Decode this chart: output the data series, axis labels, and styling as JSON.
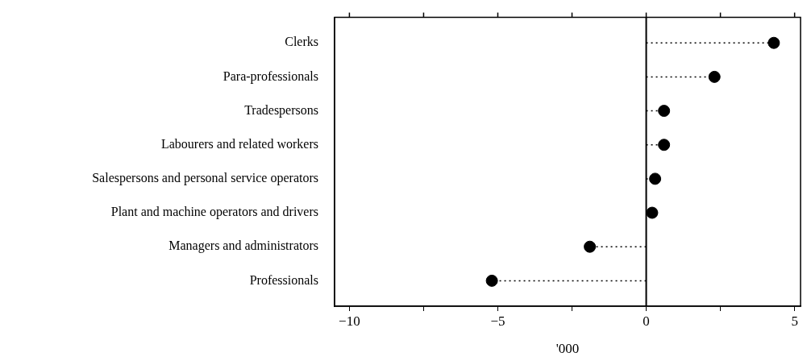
{
  "chart_data": {
    "type": "lollipop",
    "orientation": "horizontal",
    "xlabel": "'000",
    "categories": [
      "Clerks",
      "Para-professionals",
      "Tradespersons",
      "Labourers and related workers",
      "Salespersons and personal service operators",
      "Plant and machine operators and drivers",
      "Managers and administrators",
      "Professionals"
    ],
    "values": [
      4.3,
      2.3,
      0.6,
      0.6,
      0.3,
      0.2,
      -1.9,
      -5.2
    ],
    "color": "#000000",
    "marker": "circle",
    "line_style": "dotted",
    "xlim": [
      -10.5,
      5.2
    ],
    "xticks": [
      -10,
      {
        "value": -7.5,
        "label": null
      },
      -5,
      {
        "value": -2.5,
        "label": null
      },
      0,
      {
        "value": 2.5,
        "label": null
      },
      5
    ],
    "ref_lines": [
      {
        "axis": "x",
        "value": 0,
        "color": "#000000",
        "line_style": "solid"
      }
    ]
  }
}
